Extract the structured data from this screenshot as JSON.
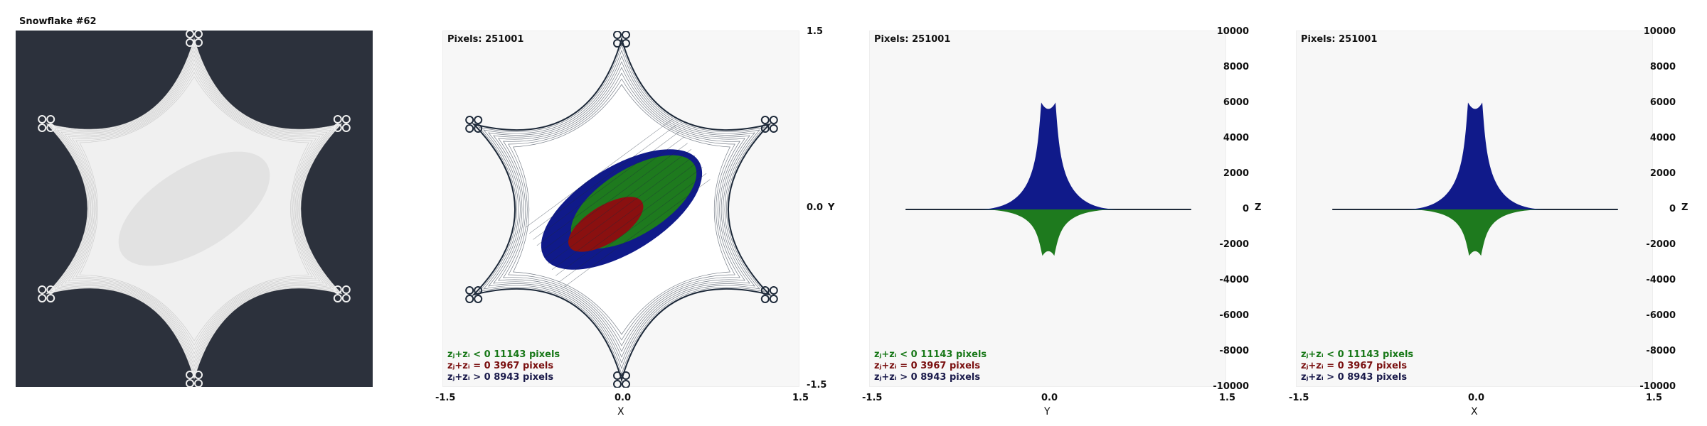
{
  "title": "Snowflake #62",
  "pixels_label": "Pixels: 251001",
  "stats": {
    "neg": "zⱼ+zᵢ < 0  11143 pixels",
    "zero": "zⱼ+zᵢ = 0  3967 pixels",
    "pos": "zⱼ+zᵢ > 0  8943 pixels"
  },
  "colors": {
    "dark_bg": "#2c313c",
    "snowflake_white": "#f0f0f0",
    "outline": "#1e2a3a",
    "green": "#1e7a1e",
    "red": "#8a1010",
    "blue": "#101a8a"
  },
  "chart_data": [
    {
      "type": "scatter",
      "xlabel": "X",
      "ylabel": "Y",
      "xlim": [
        -1.5,
        1.5
      ],
      "ylim": [
        -1.5,
        1.5
      ],
      "x_ticks": [
        "-1.5",
        "0.0",
        "1.5"
      ],
      "y_ticks": [
        "1.5",
        "0.0",
        "-1.5"
      ]
    },
    {
      "type": "area",
      "xlabel": "Y",
      "ylabel": "Z",
      "xlim": [
        -1.5,
        1.5
      ],
      "ylim": [
        -10000,
        10000
      ],
      "x_ticks": [
        "-1.5",
        "0.0",
        "1.5"
      ],
      "y_ticks": [
        "10000",
        "8000",
        "6000",
        "4000",
        "2000",
        "0",
        "-2000",
        "-4000",
        "-6000",
        "-8000",
        "-10000"
      ],
      "peak_pos": 6000,
      "peak_neg": -2600
    },
    {
      "type": "area",
      "xlabel": "X",
      "ylabel": "Z",
      "xlim": [
        -1.5,
        1.5
      ],
      "ylim": [
        -10000,
        10000
      ],
      "x_ticks": [
        "-1.5",
        "0.0",
        "1.5"
      ],
      "y_ticks": [
        "10000",
        "8000",
        "6000",
        "4000",
        "2000",
        "0",
        "-2000",
        "-4000",
        "-6000",
        "-8000",
        "-10000"
      ],
      "peak_pos": 6000,
      "peak_neg": -2600
    }
  ]
}
